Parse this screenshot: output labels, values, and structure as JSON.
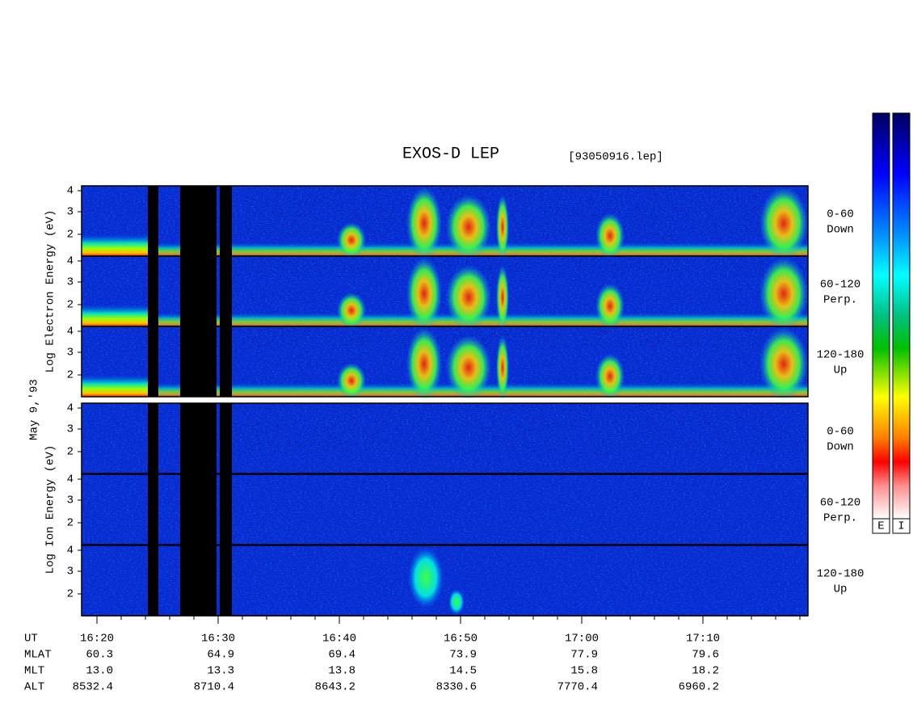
{
  "header": {
    "title": "EXOS-D LEP",
    "file": "[93050916.lep]",
    "date": "May  9,'93"
  },
  "groups": [
    {
      "axis_label": "Log  Electron  Energy (eV)",
      "panels": [
        {
          "angle": "0-60",
          "direction": "Down",
          "yticks": [
            "4",
            "3",
            "2"
          ]
        },
        {
          "angle": "60-120",
          "direction": "Perp.",
          "yticks": [
            "4",
            "3",
            "2"
          ]
        },
        {
          "angle": "120-180",
          "direction": "Up",
          "yticks": [
            "4",
            "3",
            "2"
          ]
        }
      ]
    },
    {
      "axis_label": "Log  Ion  Energy (eV)",
      "panels": [
        {
          "angle": "0-60",
          "direction": "Down",
          "yticks": [
            "4",
            "3",
            "2"
          ]
        },
        {
          "angle": "60-120",
          "direction": "Perp.",
          "yticks": [
            "4",
            "3",
            "2"
          ]
        },
        {
          "angle": "120-180",
          "direction": "Up",
          "yticks": [
            "4",
            "3",
            "2"
          ]
        }
      ]
    }
  ],
  "ephemeris": {
    "rows": [
      {
        "label": "UT",
        "values": [
          "16:20",
          "16:30",
          "16:40",
          "16:50",
          "17:00",
          "17:10"
        ]
      },
      {
        "label": "MLAT",
        "values": [
          "60.3",
          "64.9",
          "69.4",
          "73.9",
          "77.9",
          "79.6"
        ]
      },
      {
        "label": "MLT",
        "values": [
          "13.0",
          "13.3",
          "13.8",
          "14.5",
          "15.8",
          "18.2"
        ]
      },
      {
        "label": "ALT",
        "values": [
          "8532.4",
          "8710.4",
          "8643.2",
          "8330.6",
          "7770.4",
          "6960.2"
        ]
      }
    ]
  },
  "colorbars": {
    "labels": [
      "E",
      "I"
    ]
  }
}
